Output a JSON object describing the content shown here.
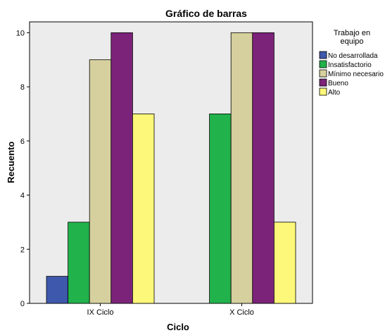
{
  "chart_data": {
    "type": "bar",
    "title": "Gráfico de barras",
    "xlabel": "Ciclo",
    "ylabel": "Recuento",
    "categories": [
      "IX Ciclo",
      "X Ciclo"
    ],
    "ylim": [
      0,
      10.4
    ],
    "yticks": [
      0,
      2,
      4,
      6,
      8,
      10
    ],
    "grid": false,
    "legend": {
      "title_lines": [
        "Trabajo en",
        "equipo"
      ],
      "placement": "right"
    },
    "series": [
      {
        "name": "No desarrollada",
        "color": "#3e58ac",
        "values": [
          1,
          0
        ]
      },
      {
        "name": "Insatisfactorio",
        "color": "#21b24b",
        "values": [
          3,
          7
        ]
      },
      {
        "name": "Mínimo necesario",
        "color": "#d6d09e",
        "values": [
          9,
          10
        ]
      },
      {
        "name": "Bueno",
        "color": "#7b2378",
        "values": [
          10,
          10
        ]
      },
      {
        "name": "Alto",
        "color": "#fdf879",
        "values": [
          7,
          3
        ]
      }
    ],
    "plot_background": "#ececec"
  }
}
